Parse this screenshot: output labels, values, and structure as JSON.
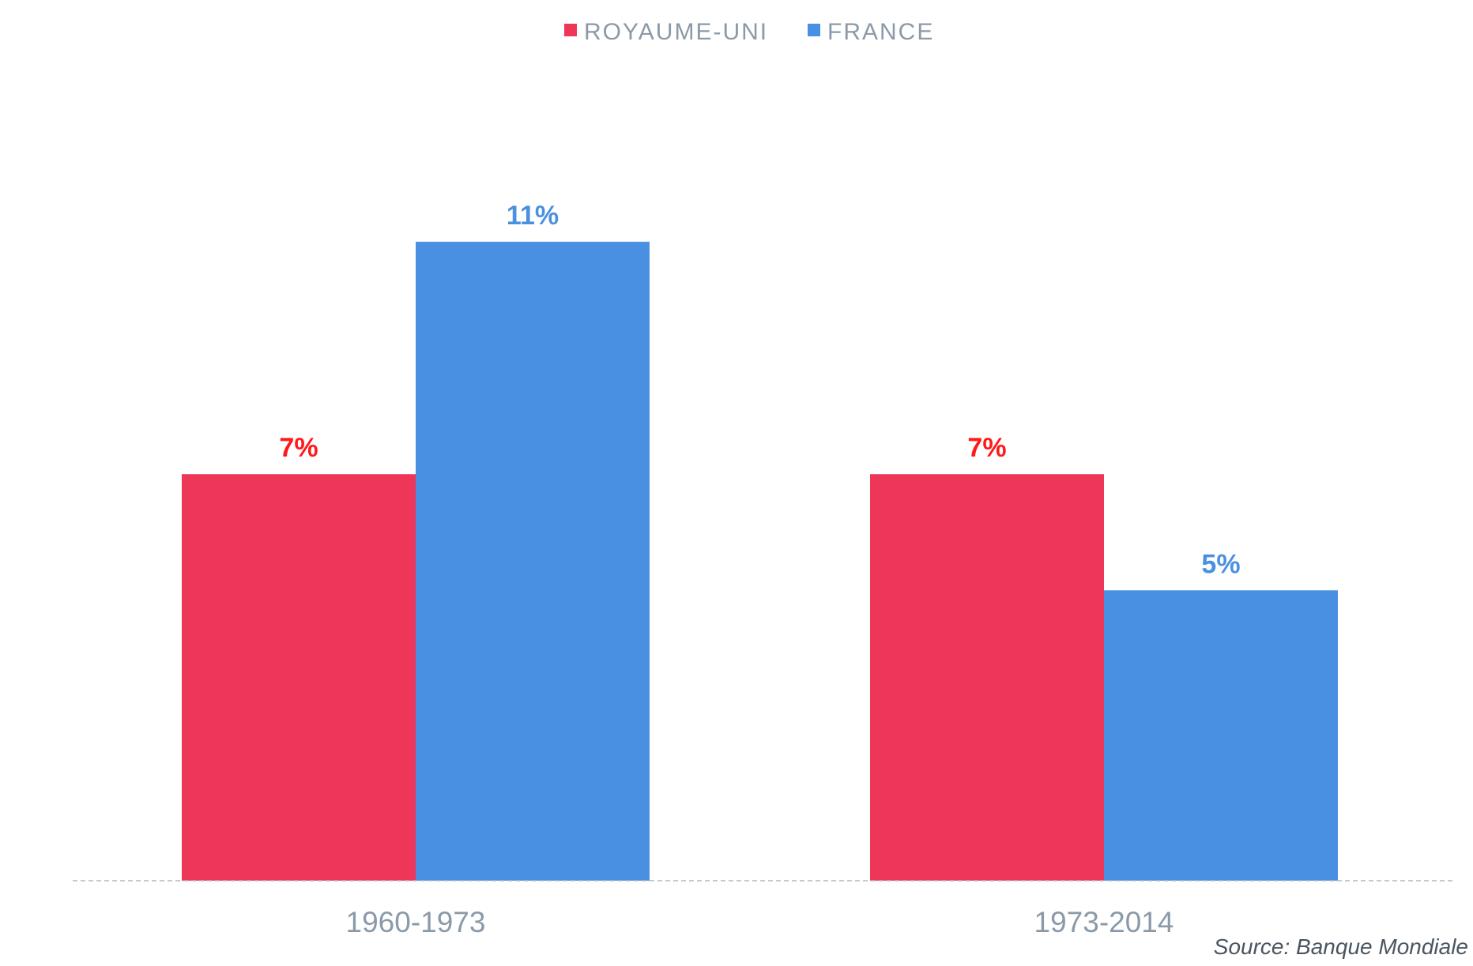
{
  "chart_data": {
    "type": "bar",
    "categories": [
      "1960-1973",
      "1973-2014"
    ],
    "series": [
      {
        "name": "ROYAUME-UNI",
        "color": "#ee3659",
        "label_color": "#ff1a1a",
        "values": [
          7,
          7
        ],
        "labels": [
          "7%",
          "7%"
        ]
      },
      {
        "name": "FRANCE",
        "color": "#4a90e2",
        "label_color": "#4a90e2",
        "values": [
          11,
          5
        ],
        "labels": [
          "11%",
          "5%"
        ]
      }
    ],
    "ylim": [
      0,
      13
    ],
    "grid": false,
    "legend": "top-center",
    "source": "Source: Banque Mondiale"
  }
}
